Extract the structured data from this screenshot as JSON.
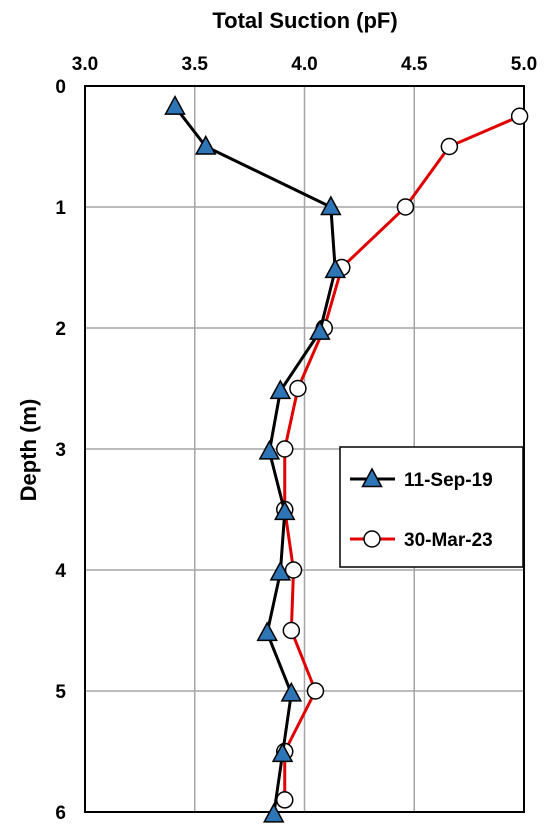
{
  "chart_data": {
    "type": "line",
    "xlabel": "Total Suction (pF)",
    "ylabel": "Depth (m)",
    "xlim": [
      3.0,
      5.0
    ],
    "ylim": [
      0,
      6
    ],
    "x_axis_position": "top",
    "y_axis_inverted": true,
    "x_ticks": [
      "3.0",
      "3.5",
      "4.0",
      "4.5",
      "5.0"
    ],
    "y_ticks": [
      "0",
      "1",
      "2",
      "3",
      "4",
      "5",
      "6"
    ],
    "grid": true,
    "legend_position": "right-middle",
    "series": [
      {
        "name": "11-Sep-19",
        "color": "#000000",
        "marker": "triangle",
        "marker_fill": "#2e75b6",
        "points": [
          {
            "suction": 3.41,
            "depth": 0.17
          },
          {
            "suction": 3.55,
            "depth": 0.5
          },
          {
            "suction": 4.12,
            "depth": 1.0
          },
          {
            "suction": 4.14,
            "depth": 1.52
          },
          {
            "suction": 4.07,
            "depth": 2.03
          },
          {
            "suction": 3.89,
            "depth": 2.52
          },
          {
            "suction": 3.84,
            "depth": 3.02
          },
          {
            "suction": 3.91,
            "depth": 3.52
          },
          {
            "suction": 3.89,
            "depth": 4.02
          },
          {
            "suction": 3.83,
            "depth": 4.52
          },
          {
            "suction": 3.94,
            "depth": 5.02
          },
          {
            "suction": 3.9,
            "depth": 5.52
          },
          {
            "suction": 3.86,
            "depth": 6.02
          }
        ]
      },
      {
        "name": "30-Mar-23",
        "color": "#e00000",
        "marker": "circle",
        "marker_fill": "#ffffff",
        "points": [
          {
            "suction": 4.98,
            "depth": 0.25
          },
          {
            "suction": 4.66,
            "depth": 0.5
          },
          {
            "suction": 4.46,
            "depth": 1.0
          },
          {
            "suction": 4.17,
            "depth": 1.5
          },
          {
            "suction": 4.09,
            "depth": 2.0
          },
          {
            "suction": 3.97,
            "depth": 2.5
          },
          {
            "suction": 3.91,
            "depth": 3.0
          },
          {
            "suction": 3.91,
            "depth": 3.5
          },
          {
            "suction": 3.95,
            "depth": 4.0
          },
          {
            "suction": 3.94,
            "depth": 4.5
          },
          {
            "suction": 4.05,
            "depth": 5.0
          },
          {
            "suction": 3.91,
            "depth": 5.5
          },
          {
            "suction": 3.91,
            "depth": 5.9
          }
        ]
      }
    ]
  }
}
